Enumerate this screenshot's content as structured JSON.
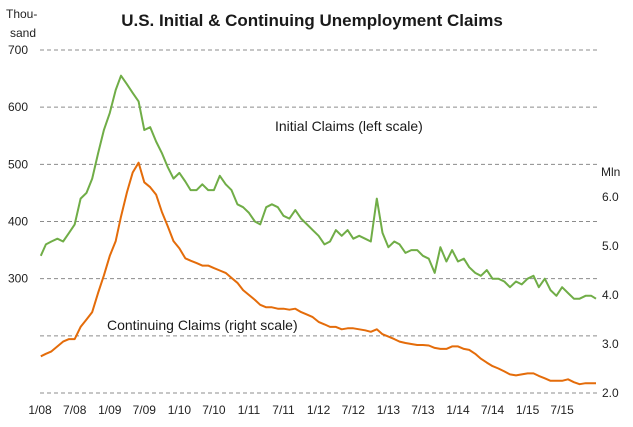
{
  "chart_data": {
    "type": "line",
    "title": "U.S. Initial & Continuing Unemployment Claims",
    "left_axis": {
      "label_line1": "Thou-",
      "label_line2": "sand",
      "ticks": [
        300,
        400,
        500,
        600,
        700
      ],
      "range": [
        100,
        700
      ]
    },
    "right_axis": {
      "label": "Mln",
      "ticks": [
        "2.0",
        "3.0",
        "4.0",
        "5.0",
        "6.0"
      ],
      "tick_values": [
        2.0,
        3.0,
        4.0,
        5.0,
        6.0
      ],
      "range": [
        2.0,
        6.0
      ]
    },
    "x_ticks": [
      "1/08",
      "7/08",
      "1/09",
      "7/09",
      "1/10",
      "7/10",
      "1/11",
      "7/11",
      "1/12",
      "7/12",
      "1/13",
      "7/13",
      "1/14",
      "7/14",
      "1/15",
      "7/15"
    ],
    "x_tick_dates": [
      "2008-01-01",
      "2008-07-01",
      "2009-01-01",
      "2009-07-01",
      "2010-01-01",
      "2010-07-01",
      "2011-01-01",
      "2011-07-01",
      "2012-01-01",
      "2012-07-01",
      "2013-01-01",
      "2013-07-01",
      "2014-01-01",
      "2014-07-01",
      "2015-01-01",
      "2015-07-01"
    ],
    "x_range": [
      "2008-01-01",
      "2015-12-31"
    ],
    "grid": "horizontal dashed",
    "series": [
      {
        "name": "Initial Claims (left scale)",
        "axis": "left",
        "color": "#70ad47",
        "points": [
          [
            "2008-01-05",
            340
          ],
          [
            "2008-02-01",
            360
          ],
          [
            "2008-03-01",
            365
          ],
          [
            "2008-04-01",
            370
          ],
          [
            "2008-05-01",
            365
          ],
          [
            "2008-06-01",
            380
          ],
          [
            "2008-07-01",
            395
          ],
          [
            "2008-08-01",
            440
          ],
          [
            "2008-09-01",
            450
          ],
          [
            "2008-10-01",
            475
          ],
          [
            "2008-11-01",
            520
          ],
          [
            "2008-12-01",
            560
          ],
          [
            "2009-01-01",
            590
          ],
          [
            "2009-02-01",
            630
          ],
          [
            "2009-03-01",
            655
          ],
          [
            "2009-04-01",
            640
          ],
          [
            "2009-05-01",
            625
          ],
          [
            "2009-06-01",
            610
          ],
          [
            "2009-07-01",
            560
          ],
          [
            "2009-08-01",
            565
          ],
          [
            "2009-09-01",
            540
          ],
          [
            "2009-10-01",
            520
          ],
          [
            "2009-11-01",
            495
          ],
          [
            "2009-12-01",
            475
          ],
          [
            "2010-01-01",
            485
          ],
          [
            "2010-02-01",
            470
          ],
          [
            "2010-03-01",
            455
          ],
          [
            "2010-04-01",
            455
          ],
          [
            "2010-05-01",
            465
          ],
          [
            "2010-06-01",
            455
          ],
          [
            "2010-07-01",
            455
          ],
          [
            "2010-08-01",
            480
          ],
          [
            "2010-09-01",
            465
          ],
          [
            "2010-10-01",
            455
          ],
          [
            "2010-11-01",
            430
          ],
          [
            "2010-12-01",
            425
          ],
          [
            "2011-01-01",
            415
          ],
          [
            "2011-02-01",
            400
          ],
          [
            "2011-03-01",
            395
          ],
          [
            "2011-04-01",
            425
          ],
          [
            "2011-05-01",
            430
          ],
          [
            "2011-06-01",
            425
          ],
          [
            "2011-07-01",
            410
          ],
          [
            "2011-08-01",
            405
          ],
          [
            "2011-09-01",
            420
          ],
          [
            "2011-10-01",
            405
          ],
          [
            "2011-11-01",
            395
          ],
          [
            "2011-12-01",
            385
          ],
          [
            "2012-01-01",
            375
          ],
          [
            "2012-02-01",
            360
          ],
          [
            "2012-03-01",
            365
          ],
          [
            "2012-04-01",
            385
          ],
          [
            "2012-05-01",
            375
          ],
          [
            "2012-06-01",
            385
          ],
          [
            "2012-07-01",
            370
          ],
          [
            "2012-08-01",
            375
          ],
          [
            "2012-09-01",
            370
          ],
          [
            "2012-10-01",
            365
          ],
          [
            "2012-11-01",
            440
          ],
          [
            "2012-12-01",
            380
          ],
          [
            "2013-01-01",
            355
          ],
          [
            "2013-02-01",
            365
          ],
          [
            "2013-03-01",
            360
          ],
          [
            "2013-04-01",
            345
          ],
          [
            "2013-05-01",
            350
          ],
          [
            "2013-06-01",
            350
          ],
          [
            "2013-07-01",
            340
          ],
          [
            "2013-08-01",
            335
          ],
          [
            "2013-09-01",
            310
          ],
          [
            "2013-10-01",
            355
          ],
          [
            "2013-11-01",
            330
          ],
          [
            "2013-12-01",
            350
          ],
          [
            "2014-01-01",
            330
          ],
          [
            "2014-02-01",
            335
          ],
          [
            "2014-03-01",
            320
          ],
          [
            "2014-04-01",
            310
          ],
          [
            "2014-05-01",
            305
          ],
          [
            "2014-06-01",
            315
          ],
          [
            "2014-07-01",
            300
          ],
          [
            "2014-08-01",
            300
          ],
          [
            "2014-09-01",
            295
          ],
          [
            "2014-10-01",
            285
          ],
          [
            "2014-11-01",
            295
          ],
          [
            "2014-12-01",
            290
          ],
          [
            "2015-01-01",
            300
          ],
          [
            "2015-02-01",
            305
          ],
          [
            "2015-03-01",
            285
          ],
          [
            "2015-04-01",
            300
          ],
          [
            "2015-05-01",
            280
          ],
          [
            "2015-06-01",
            270
          ],
          [
            "2015-07-01",
            285
          ],
          [
            "2015-08-01",
            275
          ],
          [
            "2015-09-01",
            265
          ],
          [
            "2015-10-01",
            265
          ],
          [
            "2015-11-01",
            270
          ],
          [
            "2015-12-01",
            270
          ],
          [
            "2015-12-26",
            265
          ]
        ]
      },
      {
        "name": "Continuing Claims (right scale)",
        "axis": "right",
        "color": "#e46c0a",
        "points": [
          [
            "2008-01-05",
            2.75
          ],
          [
            "2008-02-01",
            2.8
          ],
          [
            "2008-03-01",
            2.85
          ],
          [
            "2008-04-01",
            2.95
          ],
          [
            "2008-05-01",
            3.05
          ],
          [
            "2008-06-01",
            3.1
          ],
          [
            "2008-07-01",
            3.1
          ],
          [
            "2008-08-01",
            3.35
          ],
          [
            "2008-09-01",
            3.5
          ],
          [
            "2008-10-01",
            3.65
          ],
          [
            "2008-11-01",
            4.05
          ],
          [
            "2008-12-01",
            4.4
          ],
          [
            "2009-01-01",
            4.8
          ],
          [
            "2009-02-01",
            5.1
          ],
          [
            "2009-03-01",
            5.6
          ],
          [
            "2009-04-01",
            6.1
          ],
          [
            "2009-05-01",
            6.5
          ],
          [
            "2009-06-01",
            6.7
          ],
          [
            "2009-07-01",
            6.3
          ],
          [
            "2009-08-01",
            6.2
          ],
          [
            "2009-09-01",
            6.05
          ],
          [
            "2009-10-01",
            5.7
          ],
          [
            "2009-11-01",
            5.4
          ],
          [
            "2009-12-01",
            5.1
          ],
          [
            "2010-01-01",
            4.95
          ],
          [
            "2010-02-01",
            4.75
          ],
          [
            "2010-03-01",
            4.7
          ],
          [
            "2010-04-01",
            4.65
          ],
          [
            "2010-05-01",
            4.6
          ],
          [
            "2010-06-01",
            4.6
          ],
          [
            "2010-07-01",
            4.55
          ],
          [
            "2010-08-01",
            4.5
          ],
          [
            "2010-09-01",
            4.45
          ],
          [
            "2010-10-01",
            4.35
          ],
          [
            "2010-11-01",
            4.25
          ],
          [
            "2010-12-01",
            4.1
          ],
          [
            "2011-01-01",
            4.0
          ],
          [
            "2011-02-01",
            3.9
          ],
          [
            "2011-03-01",
            3.8
          ],
          [
            "2011-04-01",
            3.75
          ],
          [
            "2011-05-01",
            3.75
          ],
          [
            "2011-06-01",
            3.72
          ],
          [
            "2011-07-01",
            3.72
          ],
          [
            "2011-08-01",
            3.7
          ],
          [
            "2011-09-01",
            3.72
          ],
          [
            "2011-10-01",
            3.65
          ],
          [
            "2011-11-01",
            3.6
          ],
          [
            "2011-12-01",
            3.55
          ],
          [
            "2012-01-01",
            3.45
          ],
          [
            "2012-02-01",
            3.4
          ],
          [
            "2012-03-01",
            3.35
          ],
          [
            "2012-04-01",
            3.35
          ],
          [
            "2012-05-01",
            3.3
          ],
          [
            "2012-06-01",
            3.32
          ],
          [
            "2012-07-01",
            3.32
          ],
          [
            "2012-08-01",
            3.3
          ],
          [
            "2012-09-01",
            3.28
          ],
          [
            "2012-10-01",
            3.25
          ],
          [
            "2012-11-01",
            3.3
          ],
          [
            "2012-12-01",
            3.2
          ],
          [
            "2013-01-01",
            3.15
          ],
          [
            "2013-02-01",
            3.1
          ],
          [
            "2013-03-01",
            3.05
          ],
          [
            "2013-04-01",
            3.02
          ],
          [
            "2013-05-01",
            3.0
          ],
          [
            "2013-06-01",
            2.98
          ],
          [
            "2013-07-01",
            2.98
          ],
          [
            "2013-08-01",
            2.97
          ],
          [
            "2013-09-01",
            2.92
          ],
          [
            "2013-10-01",
            2.9
          ],
          [
            "2013-11-01",
            2.9
          ],
          [
            "2013-12-01",
            2.95
          ],
          [
            "2014-01-01",
            2.95
          ],
          [
            "2014-02-01",
            2.9
          ],
          [
            "2014-03-01",
            2.88
          ],
          [
            "2014-04-01",
            2.8
          ],
          [
            "2014-05-01",
            2.7
          ],
          [
            "2014-06-01",
            2.62
          ],
          [
            "2014-07-01",
            2.55
          ],
          [
            "2014-08-01",
            2.5
          ],
          [
            "2014-09-01",
            2.44
          ],
          [
            "2014-10-01",
            2.38
          ],
          [
            "2014-11-01",
            2.36
          ],
          [
            "2014-12-01",
            2.38
          ],
          [
            "2015-01-01",
            2.4
          ],
          [
            "2015-02-01",
            2.4
          ],
          [
            "2015-03-01",
            2.35
          ],
          [
            "2015-04-01",
            2.3
          ],
          [
            "2015-05-01",
            2.25
          ],
          [
            "2015-06-01",
            2.25
          ],
          [
            "2015-07-01",
            2.25
          ],
          [
            "2015-08-01",
            2.28
          ],
          [
            "2015-09-01",
            2.22
          ],
          [
            "2015-10-01",
            2.18
          ],
          [
            "2015-11-01",
            2.2
          ],
          [
            "2015-12-01",
            2.2
          ],
          [
            "2015-12-26",
            2.2
          ]
        ]
      }
    ],
    "colors": {
      "initial": "#70ad47",
      "continuing": "#e46c0a",
      "grid": "#8c8c8c"
    }
  }
}
